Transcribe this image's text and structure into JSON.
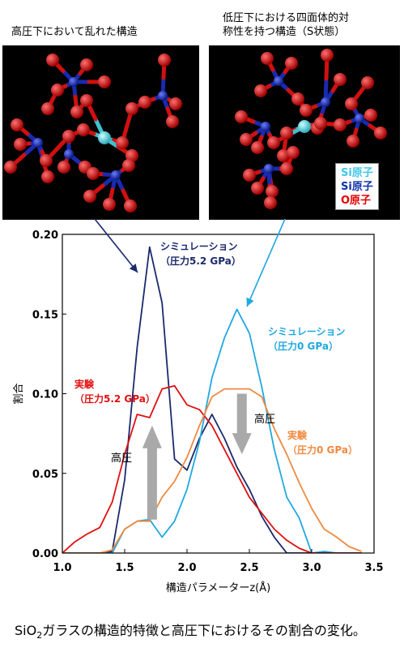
{
  "panels": {
    "left_title": "高圧下において乱れた構造",
    "right_title": "低圧下における四面体的対\n称性を持つ構造（S状態）"
  },
  "atom_legend": [
    {
      "label": "Si原子",
      "color": "#3fc8e8"
    },
    {
      "label": "Si原子",
      "color": "#1133aa"
    },
    {
      "label": "O原子",
      "color": "#e00000"
    }
  ],
  "chart_data": {
    "type": "line",
    "xlabel": "構造パラメーターz(Å)",
    "ylabel": "割合",
    "xlim": [
      1.0,
      3.5
    ],
    "ylim": [
      0.0,
      0.2
    ],
    "xticks": [
      "1.0",
      "1.5",
      "2.0",
      "2.5",
      "3.0",
      "3.5"
    ],
    "yticks": [
      "0.00",
      "0.05",
      "0.10",
      "0.15",
      "0.20"
    ],
    "x": [
      1.0,
      1.1,
      1.2,
      1.3,
      1.4,
      1.5,
      1.6,
      1.7,
      1.8,
      1.9,
      2.0,
      2.1,
      2.2,
      2.3,
      2.4,
      2.5,
      2.6,
      2.7,
      2.8,
      2.9,
      3.0,
      3.1,
      3.2,
      3.3,
      3.4
    ],
    "series": [
      {
        "name": "シミュレーション（圧力5.2 GPa）",
        "color": "#1a2a6c",
        "values": [
          0,
          0,
          0,
          0,
          0.001,
          0.046,
          0.129,
          0.192,
          0.157,
          0.059,
          0.052,
          0.072,
          0.087,
          0.072,
          0.054,
          0.04,
          0.023,
          0.01,
          0.0,
          0,
          0,
          0,
          0,
          0,
          0
        ]
      },
      {
        "name": "シミュレーション（圧力0 GPa）",
        "color": "#20a8e0",
        "values": [
          0,
          0,
          0,
          0,
          0,
          0.015,
          0.02,
          0.021,
          0.01,
          0.02,
          0.04,
          0.07,
          0.11,
          0.135,
          0.153,
          0.138,
          0.104,
          0.065,
          0.035,
          0.022,
          0.0,
          0.001,
          0.0,
          0,
          0
        ]
      },
      {
        "name": "実験（圧力5.2 GPa）",
        "color": "#e01010",
        "values": [
          0,
          0.007,
          0.012,
          0.016,
          0.032,
          0.062,
          0.087,
          0.085,
          0.103,
          0.105,
          0.093,
          0.09,
          0.08,
          0.065,
          0.05,
          0.035,
          0.025,
          0.015,
          0.008,
          0.003,
          0.0,
          0,
          0,
          0,
          0
        ]
      },
      {
        "name": "実験（圧力0 GPa）",
        "color": "#f08a40",
        "values": [
          0,
          0,
          0,
          0,
          0.002,
          0.015,
          0.02,
          0.02,
          0.035,
          0.045,
          0.06,
          0.08,
          0.098,
          0.103,
          0.103,
          0.103,
          0.098,
          0.078,
          0.062,
          0.044,
          0.028,
          0.015,
          0.01,
          0.004,
          0.001
        ]
      }
    ],
    "annotations": {
      "sim_high": [
        "シミュレーション",
        "（圧力5.2 GPa）"
      ],
      "sim_low": [
        "シミュレーション",
        "（圧力0 GPa）"
      ],
      "exp_high": [
        "実験",
        "（圧力5.2 GPa）"
      ],
      "exp_low": [
        "実験",
        "（圧力0 GPa）"
      ],
      "arrow_up_label": "高圧",
      "arrow_down_label": "高圧"
    }
  },
  "caption": {
    "prefix": "SiO",
    "subscript": "2",
    "text": "ガラスの構造的特徴と高圧下におけるその割合の変化。"
  }
}
